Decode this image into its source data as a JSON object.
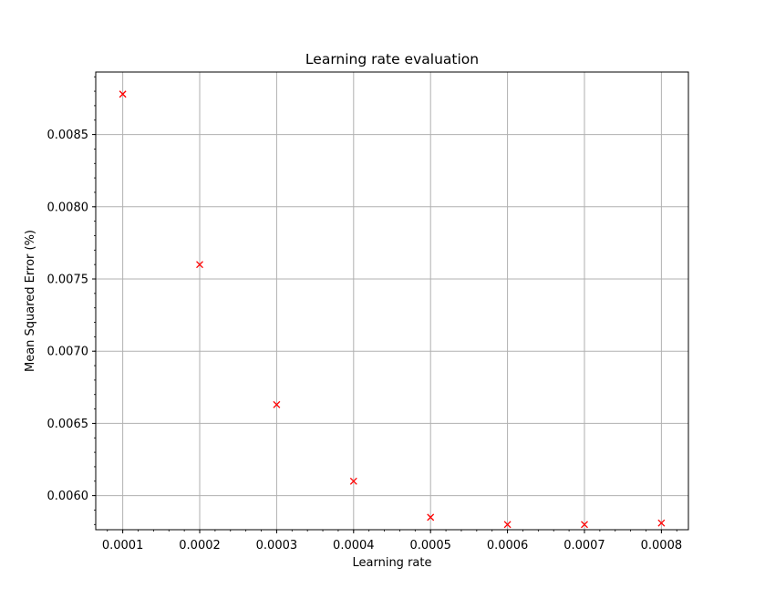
{
  "chart_data": {
    "type": "scatter",
    "title": "Learning rate evaluation",
    "xlabel": "Learning rate",
    "ylabel": "Mean Squared Error (%)",
    "x": [
      0.0001,
      0.0002,
      0.0003,
      0.0004,
      0.0005,
      0.0006,
      0.0007,
      0.0008
    ],
    "y": [
      0.00878,
      0.0076,
      0.00663,
      0.0061,
      0.00585,
      0.0058,
      0.0058,
      0.00581
    ],
    "xlim": [
      6.49e-05,
      0.0008351
    ],
    "ylim": [
      0.005764,
      0.008933
    ],
    "xticks": [
      "0.0001",
      "0.0002",
      "0.0003",
      "0.0004",
      "0.0005",
      "0.0006",
      "0.0007",
      "0.0008"
    ],
    "yticks": [
      "0.0060",
      "0.0065",
      "0.0070",
      "0.0075",
      "0.0080",
      "0.0085"
    ],
    "marker": "x",
    "marker_color": "#ff0000",
    "grid": true,
    "grid_color": "#b0b0b0",
    "minor_ticks": true
  }
}
